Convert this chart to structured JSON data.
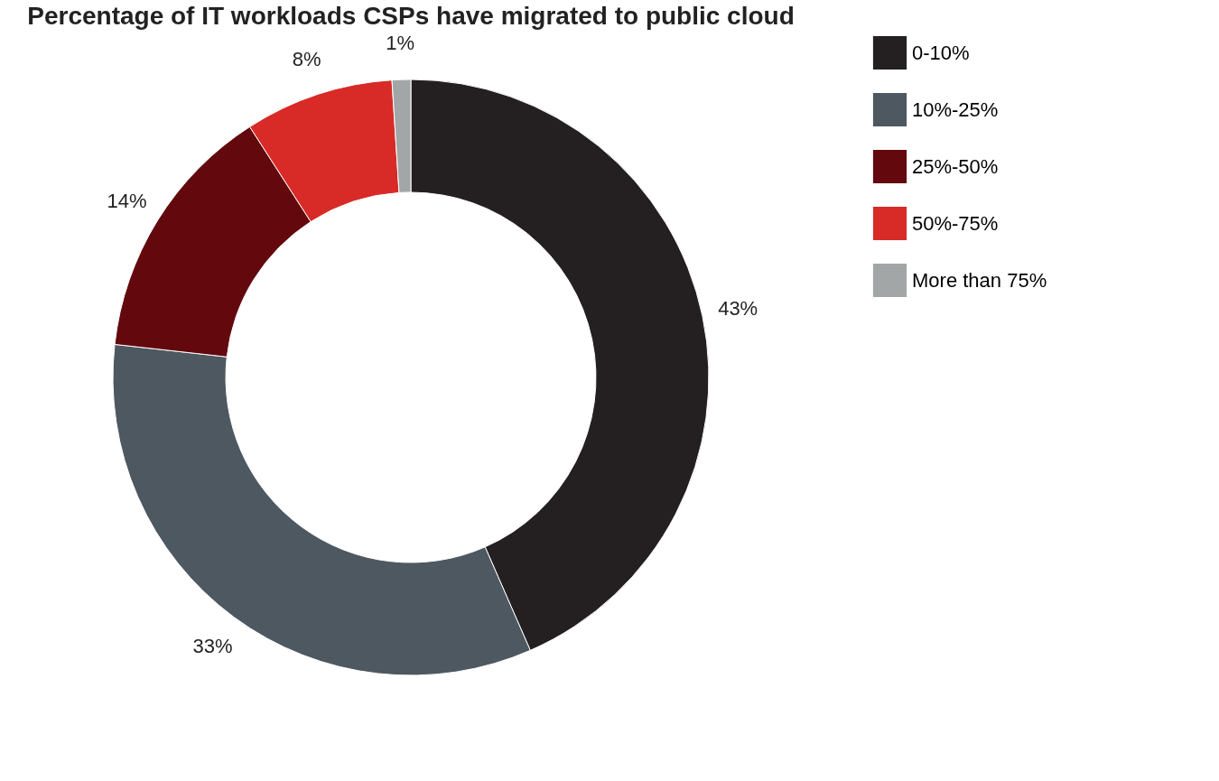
{
  "chart_data": {
    "type": "donut",
    "title": "Percentage of IT workloads CSPs have migrated to public cloud",
    "categories": [
      "0-10%",
      "10%-25%",
      "25%-50%",
      "50%-75%",
      "More than 75%"
    ],
    "values": [
      43,
      33,
      14,
      8,
      1
    ],
    "value_labels": [
      "43%",
      "33%",
      "14%",
      "8%",
      "1%"
    ],
    "colors": [
      "#242021",
      "#4e5861",
      "#63090d",
      "#d82b27",
      "#a2a6a6"
    ],
    "legend": "right"
  }
}
